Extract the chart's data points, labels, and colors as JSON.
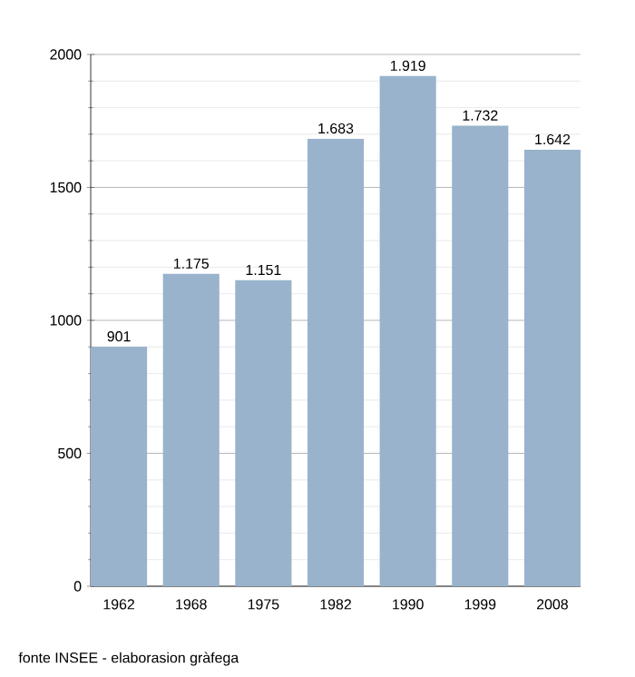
{
  "chart_data": {
    "type": "bar",
    "categories": [
      "1962",
      "1968",
      "1975",
      "1982",
      "1990",
      "1999",
      "2008"
    ],
    "values": [
      901,
      1175,
      1151,
      1683,
      1919,
      1732,
      1642
    ],
    "value_labels": [
      "901",
      "1.175",
      "1.151",
      "1.683",
      "1.919",
      "1.732",
      "1.642"
    ],
    "color": "#99b3cc",
    "ylim": [
      0,
      2000
    ],
    "yticks": [
      0,
      500,
      1000,
      1500,
      2000
    ],
    "grid": "y",
    "annotations": [
      "fonte INSEE - elaborasion gràfega"
    ]
  }
}
